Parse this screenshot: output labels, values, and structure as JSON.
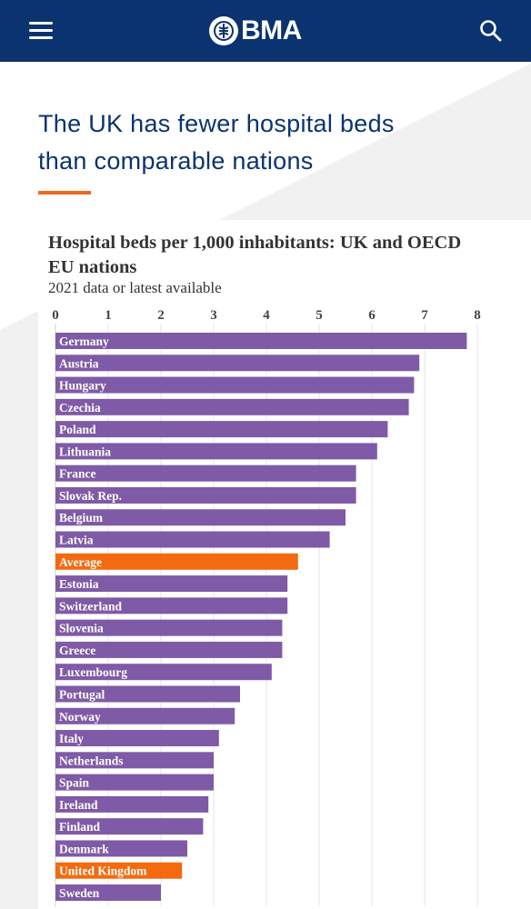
{
  "header": {
    "logo_text": "BMA",
    "menu_icon": "hamburger-menu-icon",
    "search_icon": "search-icon",
    "background": "#0b3370"
  },
  "headline": {
    "line1": "The UK has fewer hospital beds",
    "line2": "than comparable nations",
    "accent": "#ec6b1f"
  },
  "chart_data": {
    "type": "bar",
    "orientation": "horizontal",
    "title": "Hospital beds per 1,000 inhabitants: UK and OECD EU nations",
    "subtitle": "2021 data or latest available",
    "xlim": [
      0,
      8
    ],
    "xticks": [
      "0",
      "1",
      "2",
      "3",
      "4",
      "5",
      "6",
      "7",
      "8"
    ],
    "axis_position": "top",
    "grid": true,
    "colors": {
      "default": "#7f5aa6",
      "highlight": "#f36a10"
    },
    "categories": [
      "Germany",
      "Austria",
      "Hungary",
      "Czechia",
      "Poland",
      "Lithuania",
      "France",
      "Slovak Rep.",
      "Belgium",
      "Latvia",
      "Average",
      "Estonia",
      "Switzerland",
      "Slovenia",
      "Greece",
      "Luxembourg",
      "Portugal",
      "Norway",
      "Italy",
      "Netherlands",
      "Spain",
      "Ireland",
      "Finland",
      "Denmark",
      "United Kingdom",
      "Sweden"
    ],
    "values": [
      7.8,
      6.9,
      6.8,
      6.7,
      6.3,
      6.1,
      5.7,
      5.7,
      5.5,
      5.2,
      4.6,
      4.4,
      4.4,
      4.3,
      4.3,
      4.1,
      3.5,
      3.4,
      3.1,
      3.0,
      3.0,
      2.9,
      2.8,
      2.5,
      2.4,
      2.0
    ],
    "highlighted": [
      "Average",
      "United Kingdom"
    ]
  }
}
